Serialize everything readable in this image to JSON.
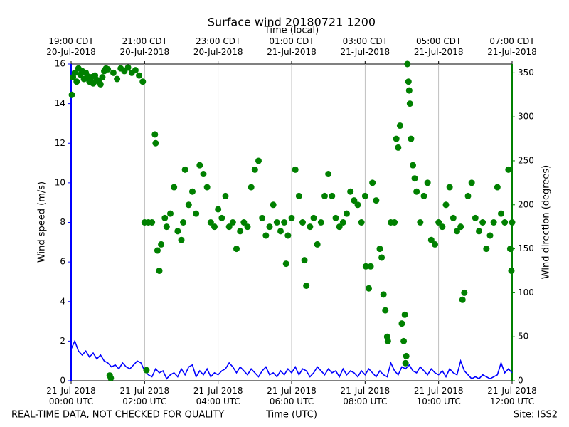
{
  "chart_data": {
    "type": "combo",
    "title": "Surface wind 20180721 1200",
    "xlabel": "Time (UTC)",
    "x2label": "Time (local)",
    "ylabel": "Wind speed (m/s)",
    "y2label": "Wind direction (degrees)",
    "footer_left": "REAL-TIME DATA, NOT CHECKED FOR QUALITY",
    "footer_right": "Site: ISS2",
    "xlim": [
      0,
      12
    ],
    "xticks": [
      {
        "value": 0,
        "label": "21-Jul-2018\n00:00 UTC"
      },
      {
        "value": 2,
        "label": "21-Jul-2018\n02:00 UTC"
      },
      {
        "value": 4,
        "label": "21-Jul-2018\n04:00 UTC"
      },
      {
        "value": 6,
        "label": "21-Jul-2018\n06:00 UTC"
      },
      {
        "value": 8,
        "label": "21-Jul-2018\n08:00 UTC"
      },
      {
        "value": 10,
        "label": "21-Jul-2018\n10:00 UTC"
      },
      {
        "value": 12,
        "label": "21-Jul-2018\n12:00 UTC"
      }
    ],
    "x2ticks": [
      {
        "value": 0,
        "label": "19:00 CDT\n20-Jul-2018"
      },
      {
        "value": 2,
        "label": "21:00 CDT\n20-Jul-2018"
      },
      {
        "value": 4,
        "label": "23:00 CDT\n20-Jul-2018"
      },
      {
        "value": 6,
        "label": "01:00 CDT\n21-Jul-2018"
      },
      {
        "value": 8,
        "label": "03:00 CDT\n21-Jul-2018"
      },
      {
        "value": 10,
        "label": "05:00 CDT\n21-Jul-2018"
      },
      {
        "value": 12,
        "label": "07:00 CDT\n21-Jul-2018"
      }
    ],
    "ylim": [
      0,
      16
    ],
    "yticks": [
      0,
      2,
      4,
      6,
      8,
      10,
      12,
      14,
      16
    ],
    "y2lim": [
      0,
      360
    ],
    "y2ticks": [
      0,
      50,
      100,
      150,
      200,
      250,
      300,
      350
    ],
    "grid": "x",
    "ycolor": "#0000ff",
    "y2color": "#008000",
    "series": [
      {
        "type": "line",
        "color": "#0000ff",
        "x": [
          0,
          0.1,
          0.2,
          0.3,
          0.4,
          0.5,
          0.6,
          0.7,
          0.8,
          0.9,
          1,
          1.1,
          1.2,
          1.3,
          1.4,
          1.5,
          1.6,
          1.7,
          1.8,
          1.9,
          2,
          2.1,
          2.2,
          2.3,
          2.4,
          2.5,
          2.6,
          2.7,
          2.8,
          2.9,
          3,
          3.1,
          3.2,
          3.3,
          3.4,
          3.5,
          3.6,
          3.7,
          3.8,
          3.9,
          4,
          4.1,
          4.2,
          4.3,
          4.4,
          4.5,
          4.6,
          4.7,
          4.8,
          4.9,
          5,
          5.1,
          5.2,
          5.3,
          5.4,
          5.5,
          5.6,
          5.7,
          5.8,
          5.9,
          6,
          6.1,
          6.2,
          6.3,
          6.4,
          6.5,
          6.6,
          6.7,
          6.8,
          6.9,
          7,
          7.1,
          7.2,
          7.3,
          7.4,
          7.5,
          7.6,
          7.7,
          7.8,
          7.9,
          8,
          8.1,
          8.2,
          8.3,
          8.4,
          8.5,
          8.6,
          8.7,
          8.8,
          8.9,
          9,
          9.1,
          9.2,
          9.3,
          9.4,
          9.5,
          9.6,
          9.7,
          9.8,
          9.9,
          10,
          10.1,
          10.2,
          10.3,
          10.4,
          10.5,
          10.6,
          10.7,
          10.8,
          10.9,
          11,
          11.1,
          11.2,
          11.3,
          11.4,
          11.5,
          11.6,
          11.7,
          11.8,
          11.9,
          12
        ],
        "values": [
          1.6,
          2.0,
          1.5,
          1.3,
          1.5,
          1.2,
          1.4,
          1.1,
          1.3,
          1.0,
          0.9,
          0.7,
          0.8,
          0.6,
          0.9,
          0.7,
          0.6,
          0.8,
          1.0,
          0.9,
          0.5,
          0.3,
          0.2,
          0.6,
          0.4,
          0.5,
          0.1,
          0.3,
          0.4,
          0.2,
          0.6,
          0.3,
          0.7,
          0.8,
          0.2,
          0.5,
          0.3,
          0.6,
          0.2,
          0.4,
          0.3,
          0.5,
          0.6,
          0.9,
          0.7,
          0.4,
          0.7,
          0.5,
          0.3,
          0.6,
          0.4,
          0.2,
          0.5,
          0.7,
          0.3,
          0.4,
          0.2,
          0.5,
          0.3,
          0.6,
          0.4,
          0.7,
          0.3,
          0.6,
          0.5,
          0.2,
          0.4,
          0.7,
          0.5,
          0.3,
          0.6,
          0.4,
          0.5,
          0.2,
          0.6,
          0.3,
          0.5,
          0.4,
          0.2,
          0.5,
          0.3,
          0.6,
          0.4,
          0.2,
          0.5,
          0.3,
          0.2,
          0.9,
          0.5,
          0.3,
          0.7,
          0.6,
          0.8,
          0.5,
          0.4,
          0.7,
          0.5,
          0.3,
          0.6,
          0.4,
          0.3,
          0.5,
          0.2,
          0.6,
          0.4,
          0.3,
          1.0,
          0.5,
          0.3,
          0.1,
          0.2,
          0.1,
          0.3,
          0.2,
          0.1,
          0.2,
          0.3,
          0.9,
          0.4,
          0.6,
          0.4
        ]
      },
      {
        "type": "scatter",
        "color": "#008000",
        "axis": "y2",
        "x": [
          0.02,
          0.05,
          0.1,
          0.15,
          0.2,
          0.25,
          0.3,
          0.35,
          0.4,
          0.45,
          0.5,
          0.55,
          0.6,
          0.65,
          0.7,
          0.75,
          0.8,
          0.85,
          0.9,
          0.95,
          1.0,
          1.05,
          1.08,
          1.15,
          1.25,
          1.35,
          1.45,
          1.55,
          1.65,
          1.75,
          1.85,
          1.95,
          2.0,
          2.05,
          2.1,
          2.2,
          2.28,
          2.3,
          2.35,
          2.4,
          2.45,
          2.55,
          2.6,
          2.7,
          2.8,
          2.9,
          3.0,
          3.05,
          3.1,
          3.2,
          3.3,
          3.4,
          3.5,
          3.6,
          3.7,
          3.8,
          3.9,
          4.0,
          4.1,
          4.2,
          4.3,
          4.4,
          4.5,
          4.6,
          4.7,
          4.8,
          4.9,
          5.0,
          5.1,
          5.2,
          5.3,
          5.4,
          5.5,
          5.6,
          5.7,
          5.8,
          5.85,
          5.9,
          6.0,
          6.1,
          6.2,
          6.3,
          6.35,
          6.4,
          6.5,
          6.6,
          6.7,
          6.8,
          6.9,
          7.0,
          7.1,
          7.2,
          7.3,
          7.4,
          7.5,
          7.6,
          7.7,
          7.8,
          7.9,
          8.0,
          8.02,
          8.1,
          8.15,
          8.2,
          8.3,
          8.4,
          8.45,
          8.5,
          8.55,
          8.6,
          8.62,
          8.7,
          8.8,
          8.85,
          8.9,
          8.95,
          9.0,
          9.05,
          9.08,
          9.1,
          9.12,
          9.15,
          9.18,
          9.2,
          9.22,
          9.25,
          9.3,
          9.35,
          9.4,
          9.5,
          9.6,
          9.7,
          9.8,
          9.9,
          10.0,
          10.1,
          10.2,
          10.3,
          10.4,
          10.5,
          10.6,
          10.65,
          10.7,
          10.8,
          10.9,
          11.0,
          11.1,
          11.2,
          11.3,
          11.4,
          11.5,
          11.6,
          11.7,
          11.8,
          11.9,
          11.95,
          11.98,
          12.0
        ],
        "values": [
          325,
          345,
          350,
          340,
          355,
          348,
          352,
          343,
          350,
          346,
          340,
          345,
          338,
          347,
          342,
          340,
          337,
          345,
          352,
          355,
          354,
          6,
          3,
          350,
          343,
          355,
          352,
          356,
          350,
          353,
          347,
          340,
          180,
          12,
          180,
          180,
          280,
          270,
          148,
          125,
          155,
          185,
          175,
          190,
          220,
          170,
          160,
          180,
          240,
          200,
          215,
          190,
          245,
          235,
          220,
          180,
          175,
          195,
          185,
          210,
          175,
          180,
          150,
          170,
          180,
          175,
          220,
          240,
          250,
          185,
          165,
          175,
          200,
          180,
          170,
          180,
          133,
          165,
          185,
          240,
          210,
          180,
          137,
          108,
          175,
          185,
          155,
          180,
          210,
          235,
          210,
          185,
          175,
          180,
          190,
          215,
          205,
          200,
          180,
          210,
          130,
          105,
          130,
          225,
          205,
          150,
          140,
          98,
          80,
          50,
          45,
          180,
          180,
          275,
          265,
          290,
          65,
          45,
          75,
          20,
          28,
          360,
          340,
          330,
          315,
          275,
          245,
          230,
          215,
          180,
          210,
          225,
          160,
          155,
          180,
          175,
          200,
          220,
          185,
          170,
          175,
          92,
          100,
          210,
          225,
          185,
          170,
          180,
          150,
          165,
          180,
          220,
          190,
          180,
          240,
          150,
          125,
          180
        ]
      }
    ]
  }
}
